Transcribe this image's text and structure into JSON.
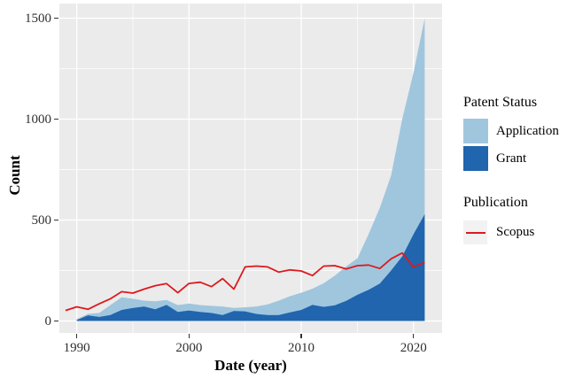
{
  "figure": {
    "y_axis_title": "Count",
    "x_axis_title": "Date (year)",
    "y_tick_labels": [
      "0",
      "500",
      "1000",
      "1500"
    ],
    "x_tick_labels": [
      "1990",
      "2000",
      "2010",
      "2020"
    ]
  },
  "legend": {
    "patent_status": {
      "title": "Patent Status",
      "items": [
        {
          "label": "Application",
          "color": "#a0c6de"
        },
        {
          "label": "Grant",
          "color": "#2065ae"
        }
      ]
    },
    "publication": {
      "title": "Publication",
      "items": [
        {
          "label": "Scopus",
          "color": "#dc1a1e"
        }
      ]
    }
  },
  "colors": {
    "panel_bg": "#ebebeb",
    "grid": "#ffffff",
    "application": "#a0c6de",
    "grant": "#2065ae",
    "scopus_red": "#dc1a1e",
    "tick_text": "#303030",
    "legend_key_bg": "#f2f2f2"
  },
  "chart_data": {
    "type": "area",
    "title": "",
    "xlabel": "Date (year)",
    "ylabel": "Count",
    "xlim": [
      1988.45,
      2022.55
    ],
    "ylim": [
      0,
      1500
    ],
    "grid": true,
    "legend_position": "right",
    "x_major_ticks": [
      1990,
      2000,
      2010,
      2020
    ],
    "x_minor_ticks": [
      1995,
      2005,
      2015
    ],
    "y_major_ticks": [
      0,
      500,
      1000,
      1500
    ],
    "y_minor_ticks": [
      250,
      750,
      1250
    ],
    "stacked_area": {
      "note": "Patent counts stacked: Grant at bottom, Application on top",
      "years": [
        1990,
        1991,
        1992,
        1993,
        1994,
        1995,
        1996,
        1997,
        1998,
        1999,
        2000,
        2001,
        2002,
        2003,
        2004,
        2005,
        2006,
        2007,
        2008,
        2009,
        2010,
        2011,
        2012,
        2013,
        2014,
        2015,
        2016,
        2017,
        2018,
        2019,
        2020,
        2021
      ],
      "series": [
        {
          "name": "Grant",
          "color": "#2065ae",
          "values": [
            5,
            28,
            20,
            30,
            55,
            65,
            72,
            58,
            80,
            45,
            52,
            45,
            40,
            30,
            50,
            48,
            35,
            30,
            30,
            43,
            55,
            80,
            70,
            78,
            100,
            130,
            155,
            185,
            250,
            320,
            430,
            530
          ]
        },
        {
          "name": "Application",
          "color": "#a0c6de",
          "values": [
            4,
            7,
            20,
            49,
            63,
            45,
            29,
            40,
            24,
            34,
            35,
            34,
            35,
            42,
            15,
            20,
            37,
            52,
            71,
            80,
            85,
            80,
            117,
            147,
            170,
            180,
            275,
            375,
            470,
            680,
            800,
            970
          ]
        }
      ]
    },
    "line": {
      "name": "Scopus",
      "color": "#dc1a1e",
      "years": [
        1989,
        1990,
        1991,
        1992,
        1993,
        1994,
        1995,
        1996,
        1997,
        1998,
        1999,
        2000,
        2001,
        2002,
        2003,
        2004,
        2005,
        2006,
        2007,
        2008,
        2009,
        2010,
        2011,
        2012,
        2013,
        2014,
        2015,
        2016,
        2017,
        2018,
        2019,
        2020,
        2021
      ],
      "values": [
        52,
        70,
        58,
        85,
        110,
        145,
        138,
        158,
        175,
        185,
        140,
        186,
        192,
        170,
        210,
        158,
        268,
        272,
        268,
        242,
        253,
        248,
        225,
        272,
        274,
        258,
        274,
        277,
        260,
        308,
        337,
        268,
        290
      ]
    }
  }
}
